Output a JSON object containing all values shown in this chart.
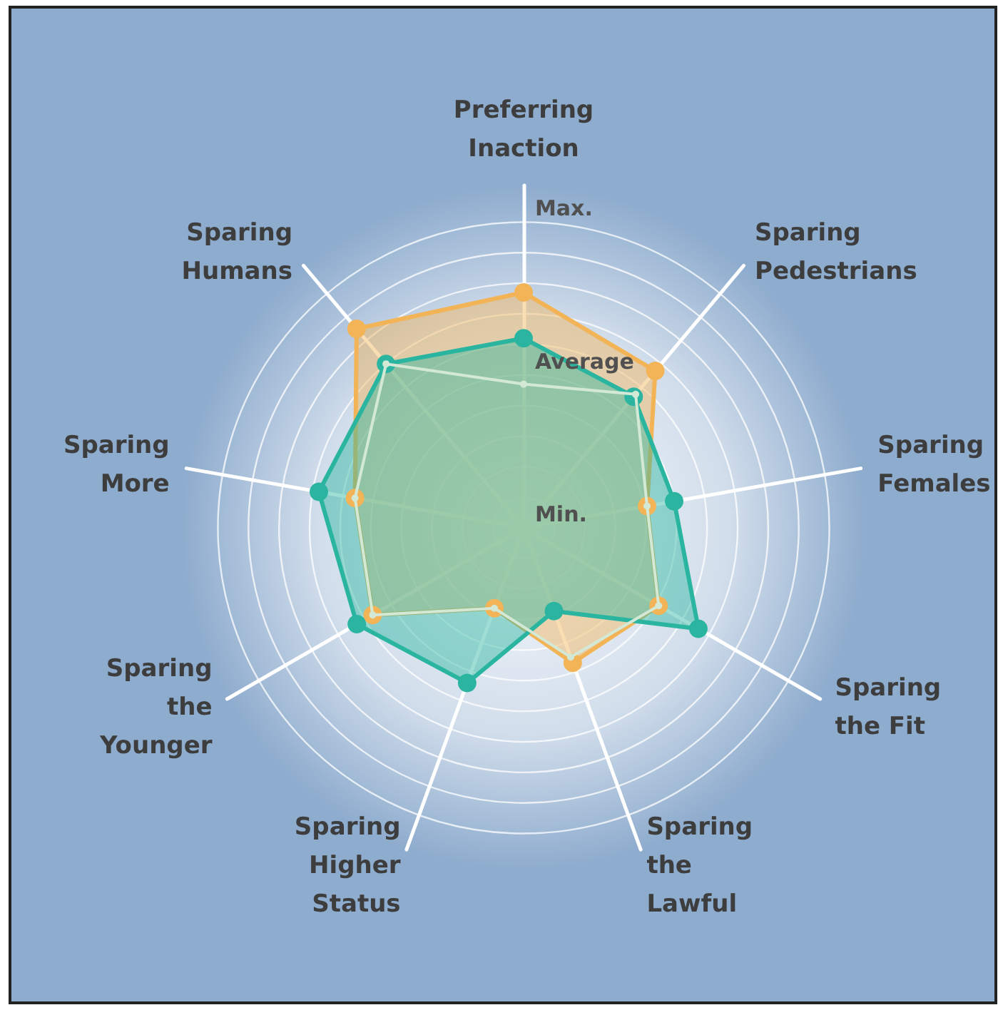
{
  "chart_data": {
    "type": "radar",
    "categories": [
      "Preferring Inaction",
      "Sparing Pedestrians",
      "Sparing Females",
      "Sparing the Fit",
      "Sparing the Lawful",
      "Sparing Higher Status",
      "Sparing the Younger",
      "Sparing More",
      "Sparing Humans"
    ],
    "ylim": [
      0,
      1.12
    ],
    "yticks": [
      {
        "value": 0,
        "label": "Min."
      },
      {
        "value": 0.5,
        "label": "Average"
      },
      {
        "value": 1,
        "label": "Max."
      }
    ],
    "grid": true,
    "marker": "circle",
    "series": [
      {
        "color": "#d3e9d6",
        "values": [
          0.47,
          0.57,
          0.41,
          0.51,
          0.45,
          0.28,
          0.57,
          0.56,
          0.7
        ]
      },
      {
        "color": "#f2b457",
        "values": [
          0.77,
          0.67,
          0.41,
          0.51,
          0.47,
          0.28,
          0.57,
          0.56,
          0.85
        ]
      },
      {
        "color": "#2bb5a0",
        "values": [
          0.62,
          0.56,
          0.5,
          0.66,
          0.29,
          0.54,
          0.63,
          0.68,
          0.7
        ]
      }
    ]
  }
}
